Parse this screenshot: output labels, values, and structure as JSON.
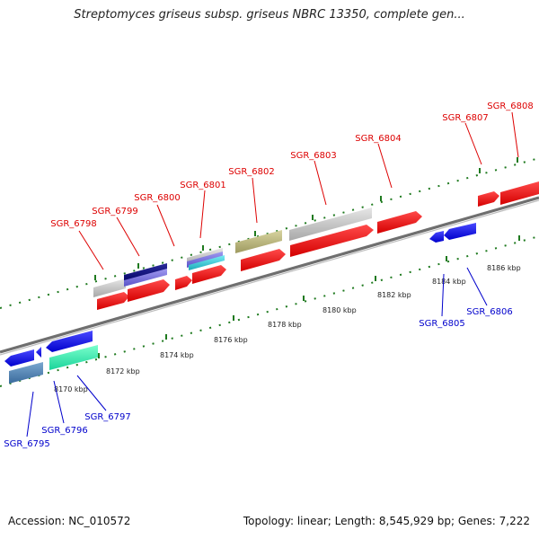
{
  "title": "Streptomyces griseus subsp. griseus NBRC 13350, complete gen...",
  "accession": "Accession: NC_010572",
  "summary": "Topology: linear; Length: 8,545,929 bp; Genes: 7,222",
  "colors": {
    "backbone": "#888888",
    "tick": "#1f7a1f",
    "top_label": "#dd0000",
    "bottom_label": "#0000cc"
  },
  "scale": {
    "unit": "kbp",
    "ticks": [
      "8170 kbp",
      "8172 kbp",
      "8174 kbp",
      "8176 kbp",
      "8178 kbp",
      "8180 kbp",
      "8182 kbp",
      "8184 kbp",
      "8186 kbp"
    ]
  },
  "gene_labels_top": [
    "SGR_6798",
    "SGR_6799",
    "SGR_6800",
    "SGR_6801",
    "SGR_6802",
    "SGR_6803",
    "SGR_6804",
    "SGR_6807",
    "SGR_6808"
  ],
  "gene_labels_bottom": [
    "SGR_6795",
    "SGR_6796",
    "SGR_6797",
    "SGR_6805",
    "SGR_6806"
  ]
}
